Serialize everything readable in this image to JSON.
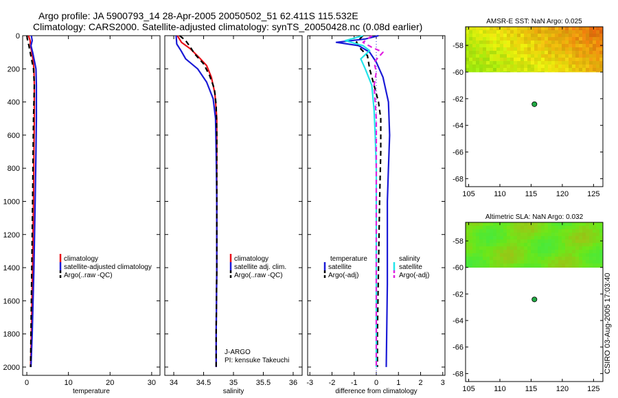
{
  "header": {
    "line1": "Argo profile: JA 5900793_14 28-Apr-2005 20050502_51 62.411S 115.532E",
    "line2": "Climatology: CARS2000. Satellite-adjusted climatology: synTS_20050428.nc (0.08d earlier)"
  },
  "footer": {
    "stamp": "CSIRO 03-Aug-2005 17:03:40"
  },
  "colors": {
    "red": "#e8101a",
    "blue": "#1a1ad6",
    "black": "#000000",
    "cyan": "#22e4ea",
    "magenta": "#e020e0",
    "green": "#22aa44"
  },
  "chart_data": [
    {
      "id": "temperature",
      "type": "line",
      "xlabel": "temperature",
      "ylabel": "",
      "xlim": [
        -1,
        32
      ],
      "ylim": [
        2050,
        0
      ],
      "xticks": [
        0,
        10,
        20,
        30
      ],
      "xtick_labels": [
        "0",
        "10",
        "20",
        "30"
      ],
      "yticks": [
        0,
        200,
        400,
        600,
        800,
        1000,
        1200,
        1400,
        1600,
        1800,
        2000
      ],
      "ytick_labels": [
        "0",
        "200",
        "400",
        "600",
        "800",
        "1000",
        "1200",
        "1400",
        "1600",
        "1800",
        "2000"
      ],
      "legend": [
        "climatology",
        "satellite-adjusted climatology",
        "Argo(..raw -QC)"
      ],
      "series": [
        {
          "name": "climatology",
          "color": "red",
          "dash": false,
          "points": [
            [
              0.4,
              0
            ],
            [
              0.8,
              30
            ],
            [
              0.9,
              60
            ],
            [
              1.2,
              100
            ],
            [
              1.5,
              150
            ],
            [
              1.7,
              200
            ],
            [
              1.8,
              300
            ],
            [
              1.8,
              500
            ],
            [
              1.7,
              700
            ],
            [
              1.6,
              1000
            ],
            [
              1.4,
              1400
            ],
            [
              1.1,
              1800
            ],
            [
              0.9,
              2000
            ]
          ]
        },
        {
          "name": "satellite-adjusted climatology",
          "color": "blue",
          "dash": false,
          "points": [
            [
              1.1,
              0
            ],
            [
              1.3,
              30
            ],
            [
              1.0,
              60
            ],
            [
              1.4,
              100
            ],
            [
              1.8,
              150
            ],
            [
              2.2,
              200
            ],
            [
              2.3,
              300
            ],
            [
              2.3,
              500
            ],
            [
              2.2,
              700
            ],
            [
              2.0,
              1000
            ],
            [
              1.7,
              1400
            ],
            [
              1.3,
              1800
            ],
            [
              1.0,
              2000
            ]
          ]
        },
        {
          "name": "Argo(..raw -QC)",
          "color": "black",
          "dash": true,
          "points": [
            [
              0.0,
              0
            ],
            [
              0.2,
              30
            ],
            [
              0.5,
              60
            ],
            [
              0.8,
              100
            ],
            [
              1.2,
              150
            ],
            [
              1.6,
              200
            ],
            [
              1.8,
              300
            ],
            [
              1.6,
              500
            ],
            [
              1.5,
              700
            ],
            [
              1.4,
              1000
            ],
            [
              1.2,
              1400
            ],
            [
              1.0,
              1800
            ],
            [
              0.9,
              2000
            ]
          ]
        }
      ]
    },
    {
      "id": "salinity",
      "type": "line",
      "xlabel": "salinity",
      "ylabel": "",
      "xlim": [
        33.85,
        36.15
      ],
      "ylim": [
        2050,
        0
      ],
      "xticks": [
        34,
        34.5,
        35,
        35.5,
        36
      ],
      "xtick_labels": [
        "34",
        "34.5",
        "35",
        "35.5",
        "36"
      ],
      "yticks": [
        0,
        200,
        400,
        600,
        800,
        1000,
        1200,
        1400,
        1600,
        1800,
        2000
      ],
      "legend": [
        "climatology",
        "satellite adj. clim.",
        "Argo(..raw -QC)"
      ],
      "annotations": [
        "J-ARGO",
        "PI: kensuke Takeuchi"
      ],
      "series": [
        {
          "name": "climatology",
          "color": "red",
          "dash": false,
          "points": [
            [
              34.06,
              0
            ],
            [
              34.13,
              40
            ],
            [
              34.28,
              80
            ],
            [
              34.42,
              130
            ],
            [
              34.55,
              180
            ],
            [
              34.63,
              250
            ],
            [
              34.69,
              350
            ],
            [
              34.72,
              500
            ],
            [
              34.72,
              700
            ],
            [
              34.72,
              1000
            ],
            [
              34.72,
              1400
            ],
            [
              34.71,
              1800
            ],
            [
              34.71,
              2000
            ]
          ]
        },
        {
          "name": "satellite adj. clim.",
          "color": "blue",
          "dash": false,
          "points": [
            [
              34.04,
              0
            ],
            [
              34.05,
              50
            ],
            [
              34.12,
              90
            ],
            [
              34.2,
              140
            ],
            [
              34.4,
              200
            ],
            [
              34.55,
              280
            ],
            [
              34.66,
              380
            ],
            [
              34.7,
              500
            ],
            [
              34.71,
              700
            ],
            [
              34.72,
              1000
            ],
            [
              34.72,
              1400
            ],
            [
              34.71,
              1800
            ],
            [
              34.71,
              2000
            ]
          ]
        },
        {
          "name": "Argo(..raw -QC)",
          "color": "black",
          "dash": true,
          "points": [
            [
              34.1,
              0
            ],
            [
              34.2,
              30
            ],
            [
              34.28,
              70
            ],
            [
              34.35,
              110
            ],
            [
              34.5,
              170
            ],
            [
              34.6,
              240
            ],
            [
              34.68,
              320
            ],
            [
              34.71,
              420
            ],
            [
              34.72,
              600
            ],
            [
              34.72,
              1000
            ],
            [
              34.72,
              1400
            ],
            [
              34.71,
              1800
            ],
            [
              34.71,
              2000
            ]
          ]
        }
      ]
    },
    {
      "id": "difference",
      "type": "line",
      "xlabel": "difference from climatology",
      "ylabel": "",
      "xlim": [
        -3.1,
        3.1
      ],
      "ylim": [
        2050,
        0
      ],
      "xticks": [
        -3,
        -2,
        -1,
        0,
        1,
        2,
        3
      ],
      "xtick_labels": [
        "-3",
        "-2",
        "-1",
        "0",
        "1",
        "2",
        "3"
      ],
      "yticks": [
        0,
        200,
        400,
        600,
        800,
        1000,
        1200,
        1400,
        1600,
        1800,
        2000
      ],
      "legend_temperature": [
        "temperature",
        "satellite",
        "Argo(-adj)"
      ],
      "legend_salinity": [
        "salinity",
        "satellite",
        "Argo(-adj)"
      ],
      "series": [
        {
          "name": "temperature satellite",
          "color": "blue",
          "dash": false,
          "points": [
            [
              0.1,
              0
            ],
            [
              -0.5,
              20
            ],
            [
              -1.8,
              40
            ],
            [
              -0.8,
              60
            ],
            [
              -0.3,
              100
            ],
            [
              0.0,
              160
            ],
            [
              0.3,
              250
            ],
            [
              0.55,
              400
            ],
            [
              0.6,
              600
            ],
            [
              0.55,
              800
            ],
            [
              0.5,
              1000
            ],
            [
              0.5,
              1500
            ],
            [
              0.45,
              2000
            ]
          ]
        },
        {
          "name": "temperature Argo(-adj)",
          "color": "black",
          "dash": true,
          "points": [
            [
              -0.6,
              0
            ],
            [
              -0.9,
              40
            ],
            [
              -0.7,
              80
            ],
            [
              -0.4,
              120
            ],
            [
              -0.3,
              200
            ],
            [
              -0.1,
              300
            ],
            [
              0.1,
              400
            ],
            [
              0.2,
              500
            ],
            [
              0.2,
              700
            ],
            [
              0.15,
              1000
            ],
            [
              0.1,
              1400
            ],
            [
              0.05,
              1800
            ],
            [
              0.05,
              2000
            ]
          ]
        },
        {
          "name": "salinity satellite",
          "color": "cyan",
          "dash": false,
          "points": [
            [
              -0.6,
              0
            ],
            [
              -1.4,
              30
            ],
            [
              -0.6,
              60
            ],
            [
              -0.3,
              90
            ],
            [
              -0.7,
              140
            ],
            [
              -0.5,
              200
            ],
            [
              -0.2,
              300
            ],
            [
              -0.1,
              450
            ],
            [
              -0.05,
              600
            ],
            [
              0.0,
              800
            ],
            [
              0.0,
              1000
            ],
            [
              0.0,
              1500
            ],
            [
              0.0,
              2000
            ]
          ]
        },
        {
          "name": "salinity Argo(-adj)",
          "color": "magenta",
          "dash": true,
          "points": [
            [
              -0.2,
              0
            ],
            [
              -0.6,
              40
            ],
            [
              -0.2,
              70
            ],
            [
              0.3,
              100
            ],
            [
              -0.1,
              160
            ],
            [
              0.0,
              220
            ],
            [
              -0.1,
              300
            ],
            [
              0.0,
              500
            ],
            [
              0.0,
              700
            ],
            [
              0.0,
              1000
            ],
            [
              0.0,
              1500
            ],
            [
              0.0,
              2000
            ]
          ]
        }
      ]
    },
    {
      "id": "sst-map",
      "type": "heatmap",
      "title": "AMSR-E SST: NaN Argo: 0.025",
      "xlim": [
        104.5,
        126.5
      ],
      "ylim": [
        -68.6,
        -56.6
      ],
      "xticks": [
        105,
        110,
        115,
        120,
        125
      ],
      "xtick_labels": [
        "105",
        "110",
        "115",
        "120",
        "125"
      ],
      "yticks": [
        -58,
        -60,
        -62,
        -64,
        -66,
        -68
      ],
      "ytick_labels": [
        "-58",
        "-60",
        "-62",
        "-64",
        "-66",
        "-68"
      ],
      "data_lat_range": [
        -60,
        -56.6
      ],
      "marker": {
        "lon": 115.532,
        "lat": -62.411
      }
    },
    {
      "id": "sla-map",
      "type": "heatmap",
      "title": "Altimetric SLA: NaN Argo: 0.032",
      "xlim": [
        104.5,
        126.5
      ],
      "ylim": [
        -68.6,
        -56.6
      ],
      "xticks": [
        105,
        110,
        115,
        120,
        125
      ],
      "xtick_labels": [
        "105",
        "110",
        "115",
        "120",
        "125"
      ],
      "yticks": [
        -58,
        -60,
        -62,
        -64,
        -66,
        -68
      ],
      "ytick_labels": [
        "-58",
        "-60",
        "-62",
        "-64",
        "-66",
        "-68"
      ],
      "data_lat_range": [
        -60,
        -56.6
      ],
      "marker": {
        "lon": 115.532,
        "lat": -62.411
      }
    }
  ]
}
